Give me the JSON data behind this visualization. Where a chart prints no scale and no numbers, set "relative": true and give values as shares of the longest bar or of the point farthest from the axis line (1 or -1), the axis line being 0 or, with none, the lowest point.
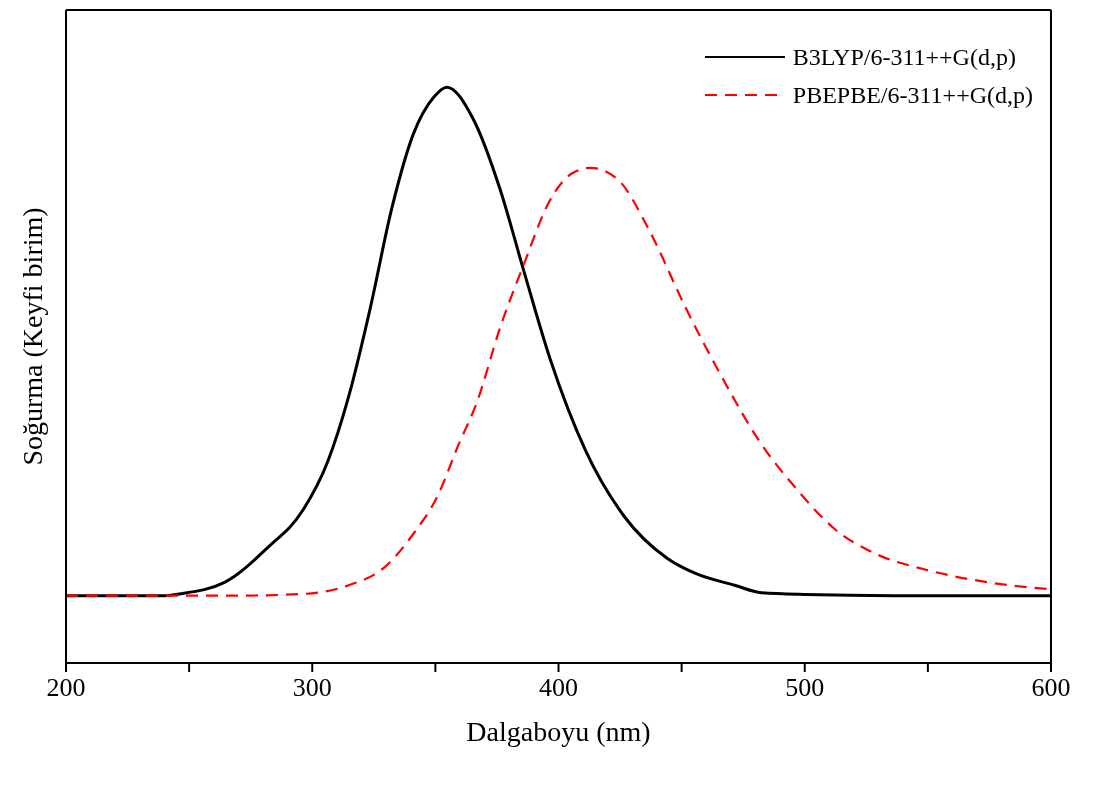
{
  "chart_data": {
    "type": "line",
    "xlabel": "Dalgaboyu (nm)",
    "ylabel": "Soğurma (Keyfi birim)",
    "relative": true,
    "xlim": [
      200,
      600
    ],
    "xticks": [
      200,
      {
        "value": 250,
        "label": null
      },
      300,
      {
        "value": 350,
        "label": null
      },
      400,
      {
        "value": 450,
        "label": null
      },
      500,
      {
        "value": 550,
        "label": null
      },
      600
    ],
    "legend": "top right",
    "grid": false,
    "marker": "none",
    "series": [
      {
        "name": "B3LYP/6-311++G(d,p)",
        "color": "#000000",
        "line_style": "solid",
        "x": [
          200,
          220,
          240,
          245.9,
          264.4,
          281.8,
          296.3,
          306.3,
          314.8,
          323.7,
          332.1,
          341,
          349.4,
          354.7,
          365.2,
          376.4,
          385.7,
          396.6,
          411.1,
          426.8,
          444.1,
          455.4,
          471.5,
          482.4,
          500,
          536,
          570,
          600
        ],
        "values": [
          0.117,
          0.117,
          0.117,
          0.12,
          0.14,
          0.2,
          0.266,
          0.35,
          0.463,
          0.619,
          0.786,
          0.918,
          0.983,
          1,
          0.946,
          0.821,
          0.684,
          0.528,
          0.368,
          0.254,
          0.182,
          0.156,
          0.135,
          0.122,
          0.119,
          0.117,
          0.117,
          0.117
        ]
      },
      {
        "name": "PBEPBE/6-311++G(d,p)",
        "color": "#ff0000",
        "line_style": "dashed",
        "x": [
          200,
          240,
          270,
          296.3,
          314.8,
          329.3,
          341,
          351,
          359.5,
          366.8,
          376.4,
          385.7,
          396.6,
          405.4,
          413.1,
          424,
          436.9,
          451.4,
          465.9,
          482.4,
          496.9,
          511.8,
          529.1,
          549.2,
          576.2,
          600
        ],
        "values": [
          0.117,
          0.117,
          0.117,
          0.12,
          0.135,
          0.166,
          0.224,
          0.291,
          0.38,
          0.452,
          0.584,
          0.69,
          0.804,
          0.85,
          0.86,
          0.84,
          0.751,
          0.619,
          0.5,
          0.38,
          0.301,
          0.234,
          0.189,
          0.162,
          0.139,
          0.128
        ]
      }
    ]
  }
}
